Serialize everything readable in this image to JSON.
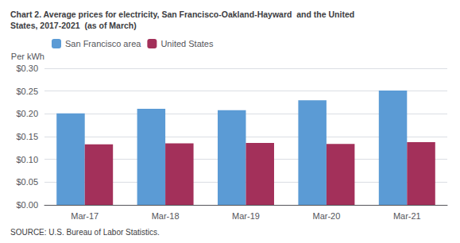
{
  "chart_data": {
    "type": "bar",
    "title": "Chart 2. Average prices for electricity, San Francisco-Oakland-Hayward  and the United\nStates, 2017-2021  (as of March)",
    "ylabel": "Per kWh",
    "source": "SOURCE: U.S. Bureau of Labor Statistics.",
    "categories": [
      "Mar-17",
      "Mar-18",
      "Mar-19",
      "Mar-20",
      "Mar-21"
    ],
    "series": [
      {
        "name": "San Francisco area",
        "color": "#5B9BD5",
        "values": [
          0.201,
          0.211,
          0.208,
          0.23,
          0.251
        ]
      },
      {
        "name": "United States",
        "color": "#A3305A",
        "values": [
          0.133,
          0.135,
          0.136,
          0.134,
          0.138
        ]
      }
    ],
    "ylim": [
      0,
      0.3
    ],
    "yticks": [
      {
        "value": 0.0,
        "label": "$0.00"
      },
      {
        "value": 0.05,
        "label": "$0.05"
      },
      {
        "value": 0.1,
        "label": "$0.10"
      },
      {
        "value": 0.15,
        "label": "$0.15"
      },
      {
        "value": 0.2,
        "label": "$0.20"
      },
      {
        "value": 0.25,
        "label": "$0.25"
      },
      {
        "value": 0.3,
        "label": "$0.30"
      }
    ],
    "grid": true,
    "legend": "upper left"
  }
}
